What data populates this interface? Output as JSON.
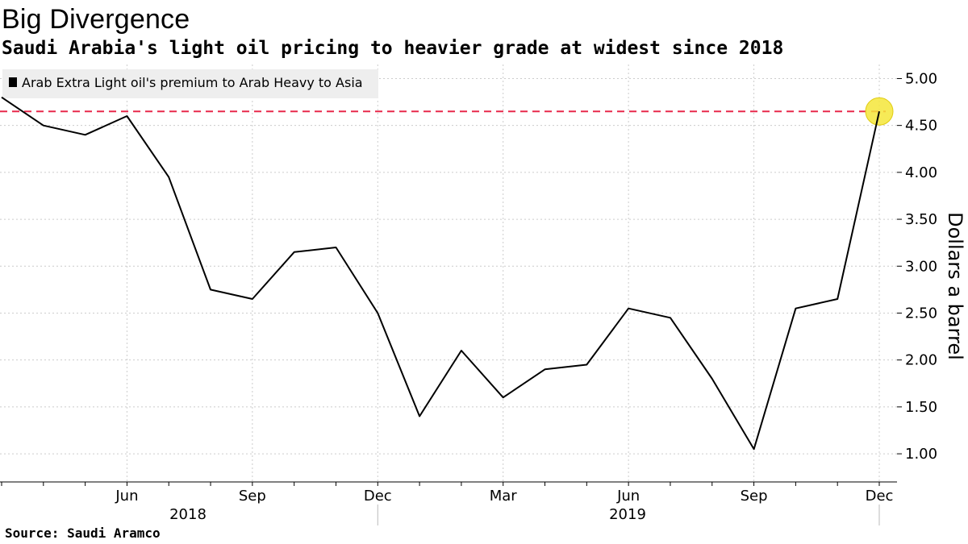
{
  "title": "Big Divergence",
  "subtitle": "Saudi Arabia's light oil pricing to heavier grade at widest since 2018",
  "source": "Source:  Saudi Aramco",
  "colors": {
    "line": "#000000",
    "reference_line": "#e8294b",
    "highlight": "#f5e63a",
    "grid": "#cccccc",
    "legend_bg": "#eeeeee"
  },
  "chart_data": {
    "type": "line",
    "ylabel": "Dollars a barrel",
    "ylim": [
      0.7,
      5.15
    ],
    "yticks": [
      "1.00",
      "1.50",
      "2.00",
      "2.50",
      "3.00",
      "3.50",
      "4.00",
      "4.50",
      "5.00"
    ],
    "y_axis_position": "right",
    "grid": true,
    "legend_position": "top-left",
    "x": [
      "2018-03",
      "2018-04",
      "2018-05",
      "2018-06",
      "2018-07",
      "2018-08",
      "2018-09",
      "2018-10",
      "2018-11",
      "2018-12",
      "2019-01",
      "2019-02",
      "2019-03",
      "2019-04",
      "2019-05",
      "2019-06",
      "2019-07",
      "2019-08",
      "2019-09",
      "2019-10",
      "2019-11",
      "2019-12"
    ],
    "xtick_labels": [
      "Jun",
      "Sep",
      "Dec",
      "Mar",
      "Jun",
      "Sep",
      "Dec"
    ],
    "year_labels": [
      "2018",
      "2019"
    ],
    "series": [
      {
        "name": "Arab Extra Light oil's premium to Arab Heavy to Asia",
        "values": [
          4.8,
          4.5,
          4.4,
          4.6,
          3.95,
          2.75,
          2.65,
          3.15,
          3.2,
          2.5,
          1.4,
          2.1,
          1.6,
          1.9,
          1.95,
          2.55,
          2.45,
          1.8,
          1.05,
          2.55,
          2.65,
          4.65
        ]
      }
    ],
    "reference_line": {
      "value": 4.65,
      "style": "dashed"
    },
    "highlight_point": {
      "x": "2019-12",
      "value": 4.65
    }
  }
}
